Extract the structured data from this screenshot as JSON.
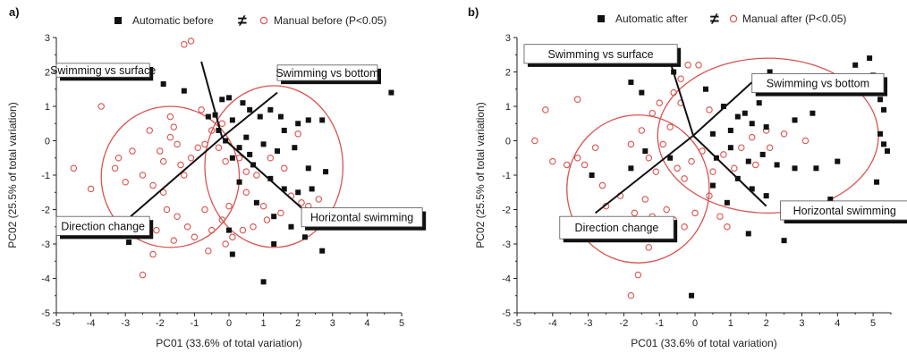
{
  "figure": {
    "colors": {
      "automatic_marker": "#111111",
      "manual_marker": "#d9534f",
      "ellipse": "#d9534f",
      "axis": "#222222",
      "vector": "#111111",
      "label_box_fill": "#ffffff",
      "label_box_shadow": "#111111"
    }
  },
  "chart_data": [
    {
      "panel_label": "a)",
      "type": "scatter",
      "xlabel": "PC01 (33.6% of total variation)",
      "ylabel": "PC02 (25.5% of total variation)",
      "xlim": [
        -5,
        5
      ],
      "ylim": [
        -5,
        3
      ],
      "xticks": [
        "-5",
        "-4",
        "-3",
        "-2",
        "-1",
        "0",
        "1",
        "2",
        "3",
        "4",
        "5"
      ],
      "yticks": [
        "-5",
        "-4",
        "-3",
        "-2",
        "-1",
        "0",
        "1",
        "2",
        "3"
      ],
      "legend": {
        "series1": "Automatic before",
        "neq": "≠",
        "series2": "Manual before (P<0.05)"
      },
      "series": [
        {
          "name": "Automatic before",
          "marker": "square",
          "points": [
            [
              -2.9,
              -2.95
            ],
            [
              -1.9,
              1.65
            ],
            [
              -1.3,
              1.45
            ],
            [
              -0.6,
              0.7
            ],
            [
              -0.4,
              0.75
            ],
            [
              -0.2,
              1.2
            ],
            [
              0.0,
              1.25
            ],
            [
              -0.3,
              0.3
            ],
            [
              0.1,
              0.6
            ],
            [
              0.4,
              1.1
            ],
            [
              0.6,
              0.9
            ],
            [
              0.9,
              0.7
            ],
            [
              1.2,
              0.9
            ],
            [
              1.5,
              0.7
            ],
            [
              1.6,
              0.3
            ],
            [
              2.0,
              0.5
            ],
            [
              2.3,
              0.6
            ],
            [
              2.7,
              0.6
            ],
            [
              0.3,
              -0.2
            ],
            [
              0.6,
              -0.4
            ],
            [
              1.0,
              -0.1
            ],
            [
              1.4,
              -0.3
            ],
            [
              1.9,
              -0.2
            ],
            [
              2.3,
              -0.8
            ],
            [
              2.8,
              -0.9
            ],
            [
              0.1,
              -0.5
            ],
            [
              0.7,
              -0.7
            ],
            [
              1.2,
              -1.1
            ],
            [
              1.6,
              -1.4
            ],
            [
              2.0,
              -1.5
            ],
            [
              2.4,
              -1.4
            ],
            [
              0.3,
              -1.2
            ],
            [
              0.8,
              -1.8
            ],
            [
              1.3,
              -2.2
            ],
            [
              1.8,
              -2.5
            ],
            [
              2.2,
              -2.8
            ],
            [
              2.7,
              -3.2
            ],
            [
              0.0,
              -2.6
            ],
            [
              0.1,
              -3.3
            ],
            [
              1.3,
              -3.0
            ],
            [
              1.0,
              -4.1
            ],
            [
              4.7,
              1.4
            ],
            [
              -0.1,
              0.0
            ],
            [
              0.5,
              0.1
            ]
          ]
        },
        {
          "name": "Manual before (P<0.05)",
          "marker": "circle",
          "points": [
            [
              -4.5,
              -0.8
            ],
            [
              -4.0,
              -1.4
            ],
            [
              -3.7,
              1.0
            ],
            [
              -3.3,
              -0.8
            ],
            [
              -3.0,
              -1.2
            ],
            [
              -2.8,
              -0.3
            ],
            [
              -2.5,
              -1.0
            ],
            [
              -2.2,
              -1.3
            ],
            [
              -2.0,
              -0.3
            ],
            [
              -1.9,
              -0.6
            ],
            [
              -1.7,
              0.1
            ],
            [
              -1.6,
              0.4
            ],
            [
              -1.5,
              -0.1
            ],
            [
              -1.4,
              -0.7
            ],
            [
              -1.3,
              -1.0
            ],
            [
              -1.1,
              -0.5
            ],
            [
              -0.9,
              -0.2
            ],
            [
              -0.7,
              -0.1
            ],
            [
              -0.5,
              0.3
            ],
            [
              -0.3,
              -0.2
            ],
            [
              -0.1,
              -0.6
            ],
            [
              0.3,
              -0.5
            ],
            [
              0.5,
              -0.9
            ],
            [
              -1.3,
              2.8
            ],
            [
              -1.1,
              2.9
            ],
            [
              -1.7,
              0.7
            ],
            [
              -1.9,
              -1.5
            ],
            [
              -1.8,
              -2.0
            ],
            [
              -1.5,
              -2.2
            ],
            [
              -1.2,
              -2.5
            ],
            [
              -1.0,
              -2.8
            ],
            [
              -0.7,
              -2.0
            ],
            [
              -0.5,
              -2.6
            ],
            [
              -0.2,
              -2.3
            ],
            [
              0.1,
              -2.8
            ],
            [
              0.4,
              -2.6
            ],
            [
              0.7,
              -2.5
            ],
            [
              1.1,
              -2.3
            ],
            [
              1.5,
              -2.1
            ],
            [
              1.8,
              -1.6
            ],
            [
              2.1,
              -1.8
            ],
            [
              2.3,
              -1.9
            ],
            [
              2.6,
              -1.7
            ],
            [
              1.0,
              -1.9
            ],
            [
              0.5,
              -1.5
            ],
            [
              0.0,
              -1.9
            ],
            [
              -2.2,
              -3.3
            ],
            [
              -2.5,
              -3.9
            ],
            [
              -1.6,
              -2.9
            ],
            [
              -0.6,
              -3.2
            ],
            [
              -0.1,
              -3.0
            ],
            [
              0.8,
              -1.0
            ],
            [
              1.2,
              -0.5
            ],
            [
              1.6,
              -0.8
            ],
            [
              2.0,
              0.2
            ],
            [
              -0.8,
              0.9
            ],
            [
              -0.2,
              0.5
            ],
            [
              -2.3,
              0.3
            ],
            [
              -3.2,
              -0.5
            ],
            [
              -2.1,
              -2.6
            ]
          ]
        }
      ],
      "ellipses": [
        {
          "cx": -1.7,
          "cy": -1.05,
          "rx": 2.0,
          "ry": 2.05
        },
        {
          "cx": 1.3,
          "cy": -0.75,
          "rx": 2.0,
          "ry": 2.35
        }
      ],
      "origin": [
        -0.2,
        0.1
      ],
      "vectors": [
        {
          "label": "Swimming vs surface",
          "tip": [
            -0.8,
            2.3
          ],
          "box": [
            -5.0,
            2.25,
            -2.3,
            1.85
          ]
        },
        {
          "label": "Swimming vs bottom",
          "tip": [
            1.4,
            1.4
          ],
          "box": [
            1.4,
            2.2,
            4.3,
            1.75
          ]
        },
        {
          "label": "Direction change",
          "tip": [
            -2.85,
            -2.2
          ],
          "box": [
            -5.0,
            -2.2,
            -2.3,
            -2.75
          ]
        },
        {
          "label": "Horizontal swimming",
          "tip": [
            2.1,
            -1.95
          ],
          "box": [
            2.1,
            -1.95,
            5.6,
            -2.5
          ]
        }
      ]
    },
    {
      "panel_label": "b)",
      "type": "scatter",
      "xlabel": "PC01 (33.6% of total variation)",
      "ylabel": "PC02 (25.5% of total variation)",
      "xlim": [
        -5,
        5.5
      ],
      "ylim": [
        -5,
        3
      ],
      "xticks": [
        "-5",
        "-4",
        "-3",
        "-2",
        "-1",
        "0",
        "1",
        "2",
        "3",
        "4",
        "5"
      ],
      "yticks": [
        "-5",
        "-4",
        "-3",
        "-2",
        "-1",
        "0",
        "1",
        "2",
        "3"
      ],
      "legend": {
        "series1": "Automatic after",
        "neq": "≠",
        "series2": "Manual after (P<0.05)"
      },
      "series": [
        {
          "name": "Automatic after",
          "marker": "square",
          "points": [
            [
              -1.8,
              1.7
            ],
            [
              -1.5,
              1.4
            ],
            [
              -0.6,
              2.0
            ],
            [
              0.3,
              1.5
            ],
            [
              0.8,
              1.0
            ],
            [
              1.4,
              0.8
            ],
            [
              1.8,
              1.1
            ],
            [
              2.1,
              2.0
            ],
            [
              1.2,
              0.7
            ],
            [
              1.6,
              0.5
            ],
            [
              1.0,
              0.3
            ],
            [
              0.5,
              0.2
            ],
            [
              2.0,
              0.4
            ],
            [
              2.8,
              0.6
            ],
            [
              3.3,
              0.8
            ],
            [
              4.5,
              2.2
            ],
            [
              4.9,
              2.4
            ],
            [
              5.0,
              1.9
            ],
            [
              5.2,
              1.2
            ],
            [
              5.3,
              0.9
            ],
            [
              5.2,
              0.2
            ],
            [
              5.3,
              -0.1
            ],
            [
              5.4,
              -0.3
            ],
            [
              4.0,
              -0.6
            ],
            [
              3.4,
              -0.8
            ],
            [
              2.8,
              -0.8
            ],
            [
              2.3,
              -0.7
            ],
            [
              1.9,
              -0.4
            ],
            [
              1.5,
              -0.6
            ],
            [
              1.0,
              -0.2
            ],
            [
              0.6,
              -0.5
            ],
            [
              1.2,
              -1.1
            ],
            [
              1.6,
              -1.4
            ],
            [
              2.0,
              -1.6
            ],
            [
              2.5,
              -2.9
            ],
            [
              1.5,
              -2.7
            ],
            [
              0.9,
              -1.8
            ],
            [
              0.5,
              -1.3
            ],
            [
              -1.4,
              -0.3
            ],
            [
              -1.8,
              -0.8
            ],
            [
              -2.9,
              -1.0
            ],
            [
              -0.7,
              -0.5
            ],
            [
              -0.1,
              -4.5
            ],
            [
              3.8,
              -1.7
            ],
            [
              5.1,
              -1.2
            ]
          ]
        },
        {
          "name": "Manual after (P<0.05)",
          "marker": "circle",
          "points": [
            [
              -4.5,
              0.0
            ],
            [
              -4.2,
              0.9
            ],
            [
              -3.3,
              1.2
            ],
            [
              -3.1,
              -0.7
            ],
            [
              -2.6,
              -1.3
            ],
            [
              -2.1,
              -1.6
            ],
            [
              -1.8,
              -0.1
            ],
            [
              -1.5,
              0.3
            ],
            [
              -1.3,
              -0.5
            ],
            [
              -1.1,
              -0.9
            ],
            [
              -0.9,
              -0.1
            ],
            [
              -0.7,
              0.4
            ],
            [
              -0.5,
              -0.8
            ],
            [
              -0.3,
              -1.1
            ],
            [
              -0.1,
              -0.6
            ],
            [
              0.2,
              -0.3
            ],
            [
              -1.2,
              0.8
            ],
            [
              -1.0,
              1.1
            ],
            [
              -0.6,
              1.4
            ],
            [
              -0.4,
              1.8
            ],
            [
              -0.2,
              2.2
            ],
            [
              -2.0,
              -2.5
            ],
            [
              -1.7,
              -2.1
            ],
            [
              -1.4,
              -1.7
            ],
            [
              -1.2,
              -2.2
            ],
            [
              -1.0,
              -2.6
            ],
            [
              -0.8,
              -2.0
            ],
            [
              -0.6,
              -2.3
            ],
            [
              -0.3,
              -2.5
            ],
            [
              0.0,
              -2.1
            ],
            [
              0.4,
              -1.6
            ],
            [
              0.7,
              -2.2
            ],
            [
              0.9,
              -2.5
            ],
            [
              -1.3,
              -3.1
            ],
            [
              -1.6,
              -3.9
            ],
            [
              -1.8,
              -4.5
            ],
            [
              -2.3,
              -2.8
            ],
            [
              -2.5,
              -1.9
            ],
            [
              -3.6,
              -0.7
            ],
            [
              -4.0,
              -0.6
            ],
            [
              0.5,
              -0.9
            ],
            [
              0.8,
              -0.4
            ],
            [
              1.1,
              -0.8
            ],
            [
              1.3,
              -0.2
            ],
            [
              1.7,
              -0.7
            ],
            [
              2.1,
              -0.2
            ],
            [
              2.5,
              0.2
            ],
            [
              3.1,
              0.0
            ],
            [
              2.0,
              0.3
            ],
            [
              1.6,
              0.1
            ],
            [
              -2.8,
              -0.2
            ],
            [
              -3.3,
              -0.5
            ],
            [
              -0.4,
              1.1
            ],
            [
              0.1,
              2.2
            ],
            [
              0.4,
              0.9
            ]
          ]
        }
      ],
      "ellipses": [
        {
          "cx": -1.6,
          "cy": -1.4,
          "rx": 2.0,
          "ry": 2.15
        },
        {
          "cx": 2.05,
          "cy": 0.15,
          "rx": 3.1,
          "ry": 2.25
        }
      ],
      "origin": [
        -0.05,
        0.15
      ],
      "vectors": [
        {
          "label": "Swimming vs surface",
          "tip": [
            -0.7,
            2.3
          ],
          "box": [
            -4.8,
            2.8,
            -0.5,
            2.25
          ]
        },
        {
          "label": "Swimming vs bottom",
          "tip": [
            1.6,
            1.7
          ],
          "box": [
            1.6,
            1.95,
            5.3,
            1.4
          ]
        },
        {
          "label": "Direction change",
          "tip": [
            -2.8,
            -2.1
          ],
          "box": [
            -3.8,
            -2.2,
            -0.6,
            -2.85
          ]
        },
        {
          "label": "Horizontal swimming",
          "tip": [
            2.0,
            -1.9
          ],
          "box": [
            2.4,
            -1.75,
            6.0,
            -2.3
          ]
        }
      ]
    }
  ]
}
